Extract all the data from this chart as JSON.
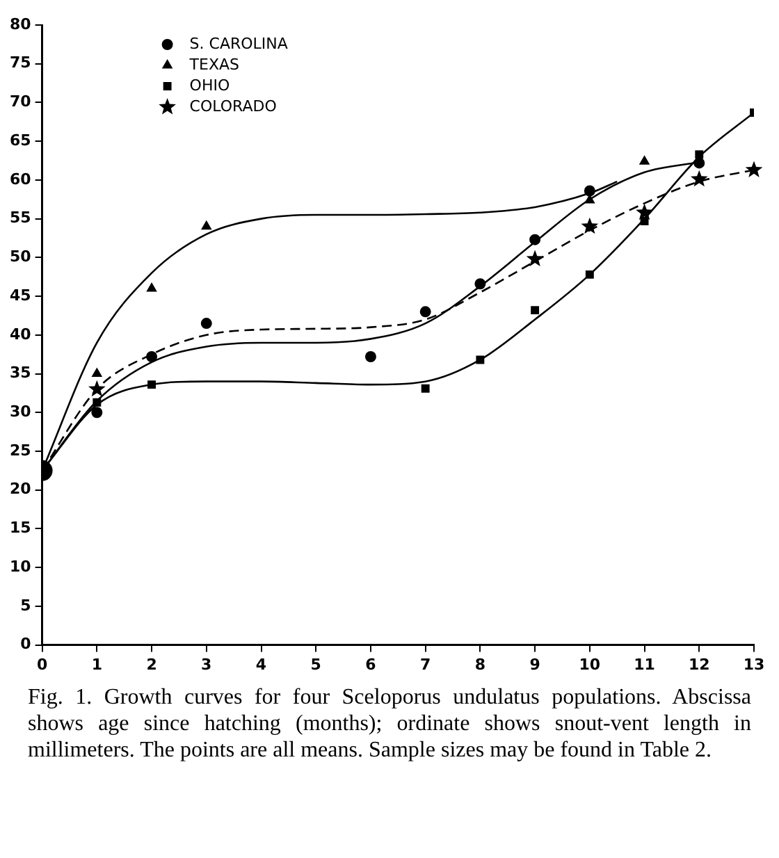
{
  "chart_data": {
    "type": "scatter",
    "annotations": [
      "Fig. 1. Growth curves for four Sceloporus undulatus populations. Abscissa shows age since hatching (months); ordinate shows snout-vent length in millimeters. The points are all means. Sample sizes may be found in Table 2."
    ],
    "xlim": [
      0,
      13
    ],
    "xticks": [
      0,
      1,
      2,
      3,
      4,
      5,
      6,
      7,
      8,
      9,
      10,
      11,
      12,
      13
    ],
    "ylim": [
      0,
      80
    ],
    "yticks": [
      0,
      5,
      10,
      15,
      20,
      25,
      30,
      35,
      40,
      45,
      50,
      55,
      60,
      65,
      70,
      75,
      80
    ],
    "grid": false,
    "legend": "top left",
    "series": [
      {
        "color": "#000000",
        "marker": "circle",
        "x": [
          0
        ],
        "values": [
          22.5
        ]
      },
      {
        "name": "S. CAROLINA",
        "color": "#000000",
        "marker": "circle",
        "x": [
          1,
          2,
          3,
          6,
          7,
          8,
          9,
          10,
          12
        ],
        "values": [
          30,
          37.2,
          41.5,
          37.2,
          43,
          46.6,
          52.3,
          58.6,
          62.2
        ]
      },
      {
        "name": "TEXAS",
        "color": "#000000",
        "marker": "triangle",
        "x": [
          1,
          2,
          3,
          10,
          11
        ],
        "values": [
          35,
          46,
          54,
          57.4,
          62.4
        ]
      },
      {
        "name": "OHIO",
        "color": "#000000",
        "marker": "square",
        "x": [
          1,
          2,
          7,
          8,
          9,
          10,
          11,
          12,
          13
        ],
        "values": [
          31.3,
          33.6,
          33.1,
          36.8,
          43.2,
          47.8,
          54.7,
          63.3,
          68.7
        ]
      },
      {
        "name": "COLORADO",
        "color": "#000000",
        "marker": "star",
        "x": [
          1,
          9,
          10,
          11,
          12,
          13
        ],
        "values": [
          33,
          49.8,
          54,
          55.8,
          60.1,
          61.3
        ]
      },
      {
        "type": "line",
        "color": "#000000",
        "marker": "none",
        "line_style": "solid",
        "x": [
          0,
          1,
          2,
          3,
          4,
          5,
          6,
          7,
          8,
          9,
          10,
          10.5
        ],
        "values": [
          22.5,
          39,
          48,
          53,
          55,
          55.5,
          55.5,
          55.6,
          55.8,
          56.5,
          58.3,
          59.8
        ]
      },
      {
        "type": "line",
        "color": "#000000",
        "marker": "none",
        "line_style": "solid",
        "x": [
          0,
          1,
          2,
          3,
          4,
          5,
          6,
          7,
          8,
          9,
          10,
          11,
          12
        ],
        "values": [
          22.5,
          31.5,
          36.5,
          38.5,
          39,
          39,
          39.5,
          41.5,
          46.3,
          52,
          57.5,
          61,
          62.3
        ]
      },
      {
        "type": "line",
        "color": "#000000",
        "marker": "none",
        "line_style": "dashed",
        "x": [
          0,
          1,
          2,
          3,
          4,
          5,
          6,
          7,
          8,
          9,
          10,
          11,
          12,
          13
        ],
        "values": [
          22.5,
          33,
          37.5,
          40,
          40.7,
          40.8,
          41,
          42,
          45.5,
          49.5,
          53.5,
          57,
          59.8,
          61.3
        ]
      },
      {
        "type": "line",
        "color": "#000000",
        "marker": "none",
        "line_style": "solid",
        "x": [
          0,
          1,
          2,
          3,
          4,
          5,
          6,
          7,
          8,
          9,
          10,
          11,
          12,
          13
        ],
        "values": [
          22.5,
          31,
          33.6,
          34,
          34,
          33.8,
          33.6,
          34,
          36.8,
          42,
          47.8,
          55,
          63,
          68.7
        ]
      }
    ]
  }
}
